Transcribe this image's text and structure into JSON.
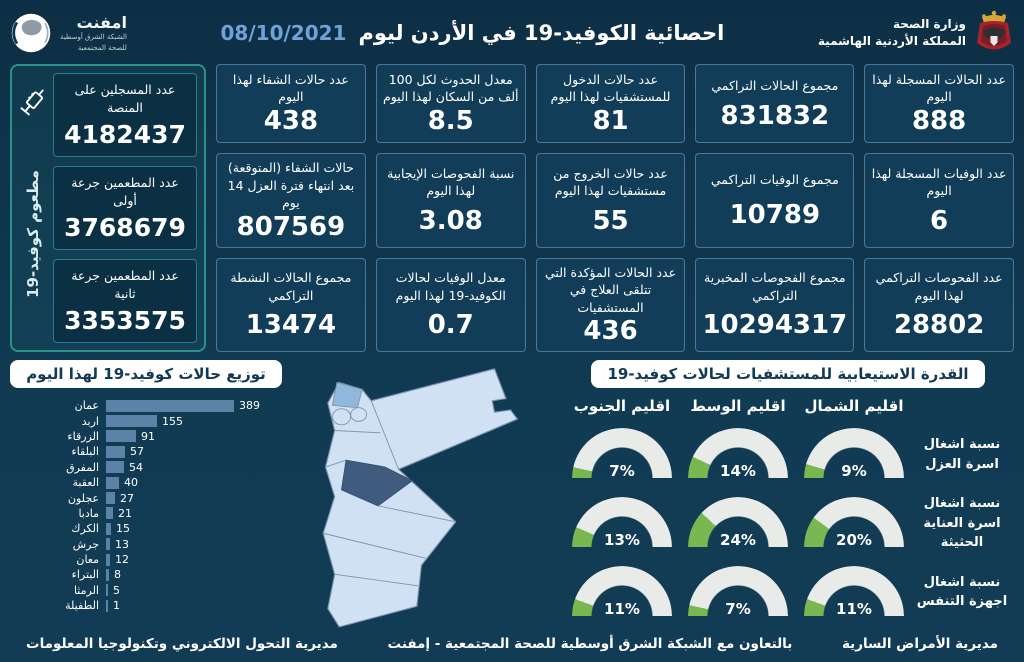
{
  "colors": {
    "background": "#113a53",
    "card_bg": "#113d59",
    "card_border": "#7daac8",
    "teal_border": "#2a9287",
    "date_accent": "#6fa3d8",
    "bar_fill": "#5d82a8",
    "gauge_green": "#79b751",
    "gauge_track": "#e9ebe9",
    "banner_bg": "#ffffff",
    "banner_text": "#123a54",
    "map_light": "#cfe1f3",
    "map_medium": "#8fb8dc",
    "map_dark": "#3f5c7e"
  },
  "header": {
    "title": "احصائية الكوفيد-19 في الأردن ليوم",
    "date": "08/10/2021",
    "ministry": {
      "line1": "وزارة الصحة",
      "line2": "المملكة الأردنية الهاشمية"
    },
    "network_logo": {
      "name": "امفنت",
      "line1": "الشبكة الشرق أوسطية",
      "line2": "للصحة المجتمعية"
    }
  },
  "vaccination_panel": {
    "side_label": "مطعوم كوفيد-19",
    "items": [
      {
        "label": "عدد المسجلين على المنصة",
        "value": "4182437"
      },
      {
        "label": "عدد المطعمين جرعة أولى",
        "value": "3768679"
      },
      {
        "label": "عدد المطعمين جرعة ثانية",
        "value": "3353575"
      }
    ]
  },
  "stats_cards": [
    {
      "label": "عدد الحالات المسجلة لهذا اليوم",
      "value": "888"
    },
    {
      "label": "مجموع الحالات التراكمي",
      "value": "831832"
    },
    {
      "label": "عدد حالات الدخول للمستشفيات لهذا اليوم",
      "value": "81"
    },
    {
      "label": "معدل الحدوث لكل 100 ألف من السكان لهذا اليوم",
      "value": "8.5"
    },
    {
      "label": "عدد حالات الشفاء لهذا اليوم",
      "value": "438"
    },
    {
      "label": "عدد الوفيات المسجلة لهذا اليوم",
      "value": "6"
    },
    {
      "label": "مجموع الوفيات التراكمي",
      "value": "10789"
    },
    {
      "label": "عدد حالات الخروج من مستشفيات لهذا اليوم",
      "value": "55"
    },
    {
      "label": "نسبة الفحوصات الإيجابية لهذا اليوم",
      "value": "3.08"
    },
    {
      "label": "حالات الشفاء (المتوقعة) بعد انتهاء فترة العزل 14 يوم",
      "value": "807569"
    },
    {
      "label": "عدد الفحوصات التراكمي لهذا اليوم",
      "value": "28802"
    },
    {
      "label": "مجموع الفحوصات المخبرية التراكمي",
      "value": "10294317"
    },
    {
      "label": "عدد الحالات المؤكدة التي تتلقى العلاج في المستشفيات",
      "value": "436"
    },
    {
      "label": "معدل الوفيات لحالات الكوفيد-19 لهذا اليوم",
      "value": "0.7"
    },
    {
      "label": "مجموع الحالات النشطة التراكمي",
      "value": "13474"
    }
  ],
  "chart_data": [
    {
      "type": "bar",
      "orientation": "horizontal",
      "title": "توزيع حالات كوفيد-19 لهذا اليوم",
      "categories": [
        "عمان",
        "اربد",
        "الزرقاء",
        "البلقاء",
        "المفرق",
        "العقبة",
        "عجلون",
        "مادبا",
        "الكرك",
        "جرش",
        "معان",
        "البتراء",
        "الرمثا",
        "الطفيلة"
      ],
      "values": [
        389,
        155,
        91,
        57,
        54,
        40,
        27,
        21,
        15,
        13,
        12,
        8,
        5,
        1
      ],
      "xlim": [
        0,
        400
      ],
      "grid": false
    },
    {
      "type": "gauge-grid",
      "title": "القدرة الاستيعابية للمستشفيات لحالات كوفيد-19",
      "columns": [
        "اقليم الشمال",
        "اقليم الوسط",
        "اقليم الجنوب"
      ],
      "rows": [
        {
          "label": "نسبة اشغال اسرة العزل",
          "values": [
            9,
            14,
            7
          ]
        },
        {
          "label": "نسبة اشغال اسرة العناية الحثيثة",
          "values": [
            20,
            24,
            13
          ]
        },
        {
          "label": "نسبة اشغال اجهزة التنفس",
          "values": [
            11,
            7,
            11
          ]
        }
      ],
      "unit": "%",
      "range": [
        0,
        100
      ]
    }
  ],
  "footer": {
    "right": "مديرية الأمراض السارية",
    "center": "بالتعاون مع الشبكة الشرق أوسطية للصحة المجتمعية - إمفنت",
    "left": "مديرية التحول الالكتروني وتكنولوجيا المعلومات"
  }
}
